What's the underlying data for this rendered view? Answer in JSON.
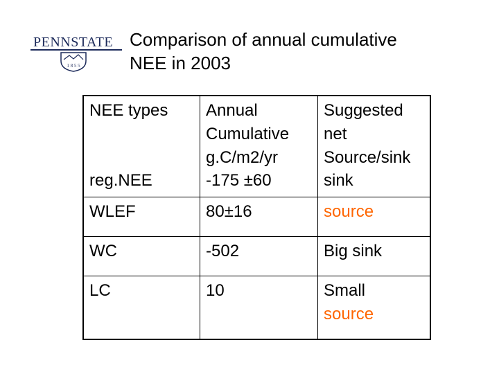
{
  "logo": {
    "text": "PENNSTATE",
    "year": "1 8 5 5"
  },
  "title": {
    "line1": "Comparison of annual cumulative",
    "line2": "NEE in 2003"
  },
  "table": {
    "header": {
      "col0": [
        "NEE types"
      ],
      "col1": [
        "Annual",
        "Cumulative",
        "g.C/m2/yr"
      ],
      "col2": [
        "Suggested",
        "net",
        "Source/sink"
      ]
    },
    "first_row": {
      "type": "reg.NEE",
      "value": "-175 ±60",
      "label": "sink"
    },
    "rows": [
      {
        "type": "WLEF",
        "value": "80±16",
        "label": "source",
        "label_color": "#ff6600"
      },
      {
        "type": "WC",
        "value": "-502",
        "label": "Big sink"
      },
      {
        "type": "LC",
        "value": "10",
        "label_line1": "Small",
        "label_line2": "source",
        "label_line2_color": "#ff6600"
      }
    ]
  },
  "colors": {
    "accent": "#ff6600",
    "logo": "#1c2a5a"
  }
}
